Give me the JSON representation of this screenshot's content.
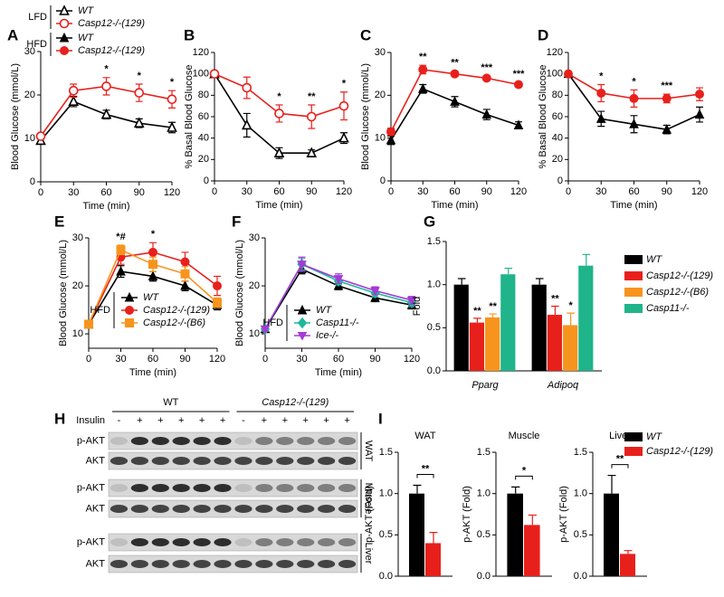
{
  "chart_data": [
    {
      "type": "line",
      "panel": "A",
      "ylabel": "Blood Glucose  (mmol/L)",
      "xlabel": "Time (min)",
      "legend_group": "LFD",
      "x": [
        0,
        30,
        60,
        90,
        120
      ],
      "xlim": [
        0,
        120
      ],
      "xticks": [
        0,
        30,
        60,
        90,
        120
      ],
      "ylim": [
        0,
        30
      ],
      "yticks": [
        0,
        10,
        20,
        30
      ],
      "series": [
        {
          "name": "WT",
          "color": "#000000",
          "marker": "triangle-open",
          "values": [
            9.5,
            18.5,
            15.5,
            13.5,
            12.5
          ],
          "errors": [
            0.5,
            1.2,
            1,
            1,
            1.2
          ]
        },
        {
          "name": "Casp12-/-(129)",
          "color": "#e8201c",
          "marker": "circle-open",
          "values": [
            10.5,
            21,
            22,
            20.5,
            19
          ],
          "errors": [
            0.5,
            1.5,
            2,
            2,
            2
          ]
        }
      ],
      "annotations": [
        {
          "x": 60,
          "text": "*"
        },
        {
          "x": 90,
          "text": "*"
        },
        {
          "x": 120,
          "text": "*"
        }
      ]
    },
    {
      "type": "line",
      "panel": "B",
      "ylabel": "% Basal Blood  Glucose",
      "xlabel": "Time (min)",
      "x": [
        0,
        30,
        60,
        90,
        120
      ],
      "xlim": [
        0,
        120
      ],
      "xticks": [
        0,
        30,
        60,
        90,
        120
      ],
      "ylim": [
        0,
        120
      ],
      "yticks": [
        0,
        20,
        40,
        60,
        80,
        100,
        120
      ],
      "series": [
        {
          "name": "WT",
          "color": "#000000",
          "marker": "triangle-open",
          "values": [
            100,
            52,
            26,
            26,
            40
          ],
          "errors": [
            0,
            11,
            5,
            3,
            5
          ]
        },
        {
          "name": "Casp12-/-(129)",
          "color": "#e8201c",
          "marker": "circle-open",
          "values": [
            100,
            87,
            63,
            60,
            70
          ],
          "errors": [
            0,
            10,
            8,
            11,
            13
          ]
        }
      ],
      "annotations": [
        {
          "x": 60,
          "text": "*"
        },
        {
          "x": 90,
          "text": "**"
        },
        {
          "x": 120,
          "text": "*"
        }
      ]
    },
    {
      "type": "line",
      "panel": "C",
      "ylabel": "Blood Glucose  (mmol/L)",
      "xlabel": "Time (min)",
      "legend_group": "HFD",
      "x": [
        0,
        30,
        60,
        90,
        120
      ],
      "xlim": [
        0,
        120
      ],
      "xticks": [
        0,
        30,
        60,
        90,
        120
      ],
      "ylim": [
        0,
        30
      ],
      "yticks": [
        0,
        10,
        20,
        30
      ],
      "series": [
        {
          "name": "WT",
          "color": "#000000",
          "marker": "triangle",
          "values": [
            9.5,
            21.5,
            18.5,
            15.5,
            13
          ],
          "errors": [
            1,
            1,
            1.2,
            1.2,
            0.8
          ]
        },
        {
          "name": "Casp12-/-(129)",
          "color": "#e8201c",
          "marker": "circle",
          "values": [
            11.5,
            26,
            25,
            24,
            22.5
          ],
          "errors": [
            0.8,
            1,
            0.6,
            0.5,
            0.5
          ]
        }
      ],
      "annotations": [
        {
          "x": 30,
          "text": "**"
        },
        {
          "x": 60,
          "text": "**"
        },
        {
          "x": 90,
          "text": "***"
        },
        {
          "x": 120,
          "text": "***"
        }
      ]
    },
    {
      "type": "line",
      "panel": "D",
      "ylabel": "% Basal Blood  Glucose",
      "xlabel": "Time (min)",
      "x": [
        0,
        30,
        60,
        90,
        120
      ],
      "xlim": [
        0,
        120
      ],
      "xticks": [
        0,
        30,
        60,
        90,
        120
      ],
      "ylim": [
        0,
        120
      ],
      "yticks": [
        0,
        20,
        40,
        60,
        80,
        100,
        120
      ],
      "series": [
        {
          "name": "WT",
          "color": "#000000",
          "marker": "triangle",
          "values": [
            100,
            58,
            53,
            48,
            62
          ],
          "errors": [
            0,
            7,
            8,
            4,
            7
          ]
        },
        {
          "name": "Casp12-/-(129)",
          "color": "#e8201c",
          "marker": "circle",
          "values": [
            100,
            82,
            77,
            77,
            81
          ],
          "errors": [
            0,
            8,
            8,
            4,
            6
          ]
        }
      ],
      "annotations": [
        {
          "x": 30,
          "text": "*"
        },
        {
          "x": 60,
          "text": "*"
        },
        {
          "x": 90,
          "text": "***"
        }
      ]
    },
    {
      "type": "line",
      "panel": "E",
      "ylabel": "Blood Glucose  (mmol/L)",
      "xlabel": "Time (min)",
      "legend_group": "HFD",
      "x": [
        0,
        30,
        60,
        90,
        120
      ],
      "xlim": [
        0,
        120
      ],
      "xticks": [
        0,
        30,
        60,
        90,
        120
      ],
      "ylim": [
        7,
        30
      ],
      "yticks": [
        10,
        20,
        30
      ],
      "series": [
        {
          "name": "WT",
          "color": "#000000",
          "marker": "triangle",
          "values": [
            12,
            23,
            22,
            20,
            16
          ],
          "errors": [
            0.6,
            1.2,
            1,
            1,
            1
          ]
        },
        {
          "name": "Casp12-/-(129)",
          "color": "#e8201c",
          "marker": "circle",
          "values": [
            12,
            26,
            27,
            25,
            20
          ],
          "errors": [
            0.6,
            1.5,
            2,
            2,
            2
          ]
        },
        {
          "name": "Casp12-/-(B6)",
          "color": "#f7941d",
          "marker": "square",
          "values": [
            12,
            27.5,
            24.5,
            22.5,
            16.5
          ],
          "errors": [
            0.6,
            1,
            1.5,
            1.5,
            1
          ]
        }
      ],
      "annotations": [
        {
          "x": 30,
          "text": "*#"
        },
        {
          "x": 60,
          "text": "*"
        }
      ]
    },
    {
      "type": "line",
      "panel": "F",
      "ylabel": "Blood Glucose  (mmol/L)",
      "xlabel": "Time (min)",
      "legend_group": "HFD",
      "x": [
        0,
        30,
        60,
        90,
        120
      ],
      "xlim": [
        0,
        120
      ],
      "xticks": [
        0,
        30,
        60,
        90,
        120
      ],
      "ylim": [
        7,
        30
      ],
      "yticks": [
        10,
        20,
        30
      ],
      "series": [
        {
          "name": "WT",
          "color": "#000000",
          "marker": "triangle",
          "values": [
            11,
            23.5,
            20,
            17.5,
            16
          ],
          "errors": [
            0.5,
            1,
            0.8,
            0.8,
            0.8
          ]
        },
        {
          "name": "Casp11-/-",
          "color": "#1fb89a",
          "marker": "diamond",
          "values": [
            11,
            24.5,
            21,
            18.5,
            16.5
          ],
          "errors": [
            0.5,
            1.2,
            0.8,
            0.8,
            0.8
          ]
        },
        {
          "name": "Ice-/-",
          "color": "#a43bd6",
          "marker": "triangle-down",
          "values": [
            11,
            24.5,
            21.5,
            19,
            17
          ],
          "errors": [
            0.5,
            1.5,
            1,
            0.8,
            0.8
          ]
        }
      ]
    },
    {
      "type": "bar",
      "panel": "G",
      "ylabel": "Fold",
      "categories": [
        "Pparg",
        "Adipoq"
      ],
      "ylim": [
        0,
        1.5
      ],
      "yticks": [
        {
          "value": 0,
          "label": "0.0"
        },
        0.5,
        {
          "value": 1,
          "label": "1.0"
        },
        1.5
      ],
      "series": [
        {
          "name": "WT",
          "color": "#000000",
          "values": [
            1,
            1
          ],
          "errors": [
            0.07,
            0.07
          ],
          "stars": [
            null,
            null
          ]
        },
        {
          "name": "Casp12-/-(129)",
          "color": "#e8201c",
          "values": [
            0.56,
            0.65
          ],
          "errors": [
            0.05,
            0.1
          ],
          "stars": [
            "**",
            "**"
          ]
        },
        {
          "name": "Casp12-/-(B6)",
          "color": "#f7941d",
          "values": [
            0.62,
            0.53
          ],
          "errors": [
            0.04,
            0.14
          ],
          "stars": [
            "**",
            "*"
          ]
        },
        {
          "name": "Casp11-/-",
          "color": "#1fb48a",
          "values": [
            1.12,
            1.22
          ],
          "errors": [
            0.07,
            0.13
          ],
          "stars": [
            null,
            null
          ]
        }
      ]
    },
    {
      "type": "bar",
      "panel": "I",
      "title": "WAT",
      "ylabel": "p-AKT (Fold)",
      "ylim": [
        0,
        1.5
      ],
      "yticks": [
        {
          "value": 0,
          "label": "0.0"
        },
        0.5,
        {
          "value": 1,
          "label": "1.0"
        },
        1.5
      ],
      "significance": "**",
      "series": [
        {
          "name": "WT",
          "color": "#000000",
          "values": [
            1
          ],
          "errors": [
            0.1
          ]
        },
        {
          "name": "Casp12-/-(129)",
          "color": "#e8201c",
          "values": [
            0.4
          ],
          "errors": [
            0.13
          ]
        }
      ]
    },
    {
      "type": "bar",
      "title": "Muscle",
      "ylabel": "p-AKT (Fold)",
      "ylim": [
        0,
        1.5
      ],
      "yticks": [
        {
          "value": 0,
          "label": "0.0"
        },
        0.5,
        {
          "value": 1,
          "label": "1.0"
        },
        1.5
      ],
      "significance": "*",
      "series": [
        {
          "color": "#000000",
          "values": [
            1
          ],
          "errors": [
            0.08
          ]
        },
        {
          "color": "#e8201c",
          "values": [
            0.62
          ],
          "errors": [
            0.12
          ]
        }
      ]
    },
    {
      "type": "bar",
      "title": "Liver",
      "ylabel": "p-AKT (Fold)",
      "ylim": [
        0,
        1.5
      ],
      "yticks": [
        {
          "value": 0,
          "label": "0.0"
        },
        0.5,
        {
          "value": 1,
          "label": "1.0"
        },
        1.5
      ],
      "significance": "**",
      "series": [
        {
          "color": "#000000",
          "values": [
            1
          ],
          "errors": [
            0.22
          ]
        },
        {
          "color": "#e8201c",
          "values": [
            0.27
          ],
          "errors": [
            0.04
          ]
        }
      ]
    }
  ],
  "blot": {
    "panel": "H",
    "groups": [
      "WT",
      "Casp12-/-(129)"
    ],
    "insulin_label": "Insulin",
    "insulin": [
      "-",
      "+",
      "+",
      "+",
      "+",
      "+",
      "-",
      "+",
      "+",
      "+",
      "+",
      "+"
    ],
    "rows": [
      "p-AKT",
      "AKT",
      "p-AKT",
      "AKT",
      "p-AKT",
      "AKT"
    ],
    "tissues": [
      "WAT",
      "Muscle",
      "Liver"
    ]
  }
}
